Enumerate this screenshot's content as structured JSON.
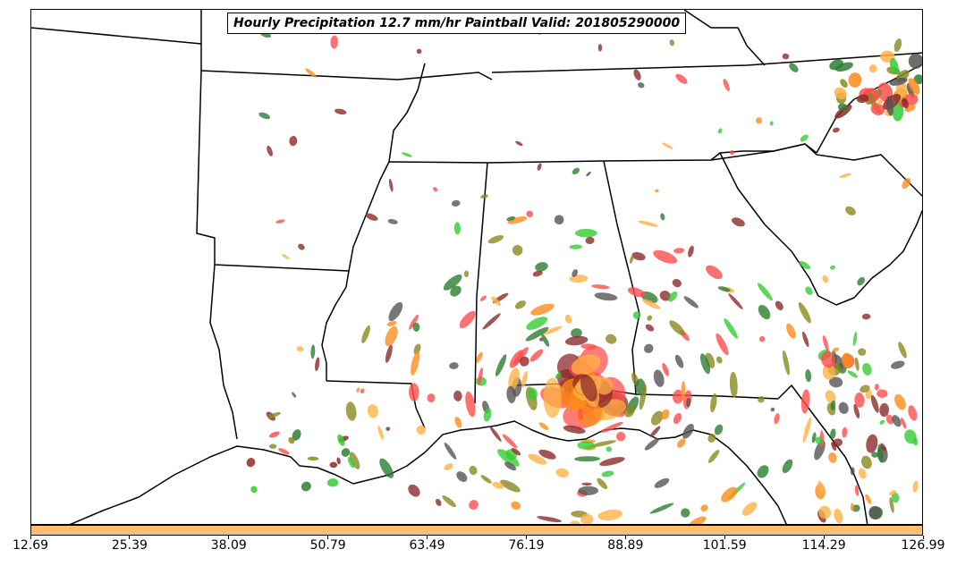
{
  "title": "Hourly Precipitation 12.7 mm/hr Paintball Valid: 201805290000",
  "colorbar": {
    "color": "#fdbf6f",
    "ticks": [
      "12.69",
      "25.39",
      "38.09",
      "50.79",
      "63.49",
      "76.19",
      "88.89",
      "101.59",
      "114.29",
      "126.99"
    ]
  },
  "colors": {
    "red": "#ff4d4d",
    "darkred": "#8b2a2a",
    "orange": "#ff8c1a",
    "lightorange": "#ffb347",
    "green": "#33cc33",
    "darkgreen": "#2e7d32",
    "olive": "#8a8a20",
    "gray": "#555555"
  }
}
